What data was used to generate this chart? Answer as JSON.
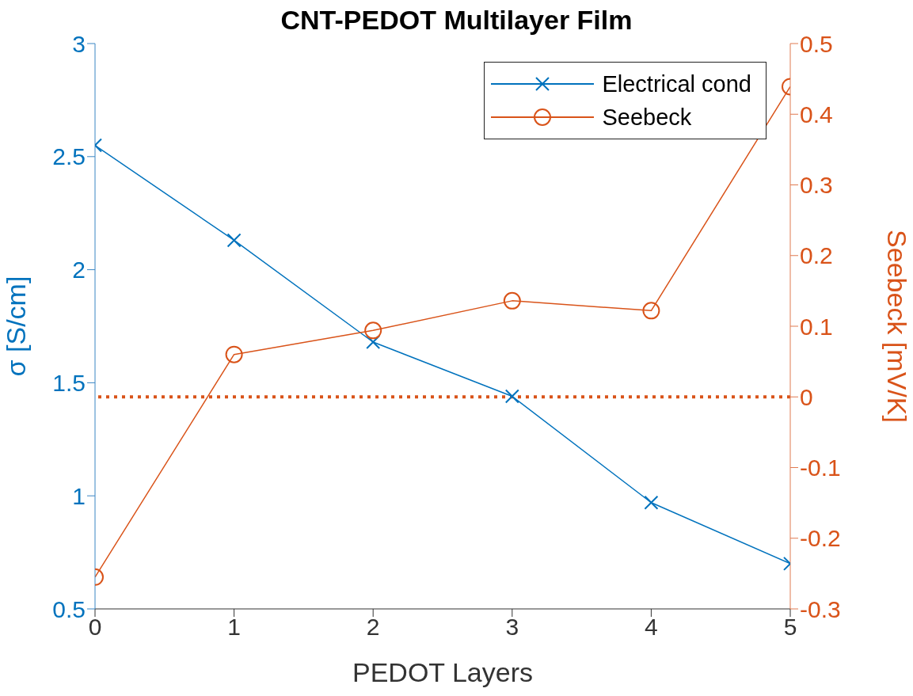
{
  "chart_data": {
    "type": "line",
    "title": "CNT-PEDOT Multilayer Film",
    "xlabel": "PEDOT Layers",
    "ylabel": "σ [S/cm]",
    "y2label": "Seebeck [mV/K]",
    "x": [
      0,
      1,
      2,
      3,
      4,
      5
    ],
    "xlim": [
      0,
      5
    ],
    "xticks": [
      0,
      1,
      2,
      3,
      4,
      5
    ],
    "ylim": [
      0.5,
      3
    ],
    "yticks": [
      0.5,
      1,
      1.5,
      2,
      2.5,
      3
    ],
    "y2lim": [
      -0.3,
      0.5
    ],
    "y2ticks": [
      -0.3,
      -0.2,
      -0.1,
      0,
      0.1,
      0.2,
      0.3,
      0.4,
      0.5
    ],
    "series": [
      {
        "name": "Electrical cond",
        "color": "#0072bd",
        "marker": "cross",
        "values": [
          2.55,
          2.13,
          1.68,
          1.44,
          0.97,
          0.7
        ]
      },
      {
        "name": "Seebeck",
        "color": "#d95319",
        "marker": "circle",
        "axis": "y2",
        "values": [
          -0.255,
          0.06,
          0.094,
          0.136,
          0.122,
          0.439
        ]
      }
    ],
    "ref_lines": [
      {
        "axis": "y2",
        "value": 0,
        "color": "#d95319",
        "line_style": "dotted"
      }
    ],
    "legend": "top right",
    "grid": false
  }
}
